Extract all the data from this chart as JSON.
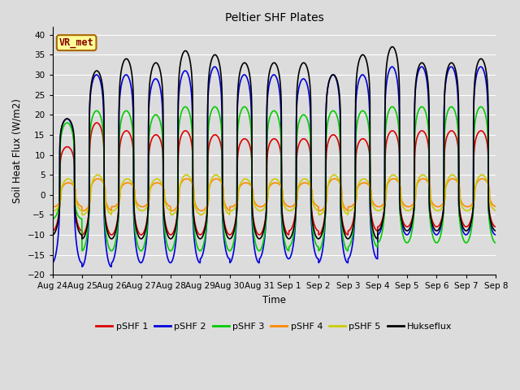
{
  "title": "Peltier SHF Plates",
  "xlabel": "Time",
  "ylabel": "Soil Heat Flux (W/m2)",
  "ylim": [
    -20,
    42
  ],
  "yticks": [
    -20,
    -15,
    -10,
    -5,
    0,
    5,
    10,
    15,
    20,
    25,
    30,
    35,
    40
  ],
  "bg_color": "#dcdcdc",
  "grid_color": "#ffffff",
  "annotation_text": "VR_met",
  "annotation_bg": "#ffff99",
  "annotation_border": "#aa6600",
  "annotation_text_color": "#880000",
  "legend_entries": [
    "pSHF 1",
    "pSHF 2",
    "pSHF 3",
    "pSHF 4",
    "pSHF 5",
    "Hukseflux"
  ],
  "line_colors": [
    "#dd0000",
    "#0000dd",
    "#00cc00",
    "#ff8800",
    "#cccc00",
    "#000000"
  ],
  "line_width": 1.2,
  "n_days": 15,
  "xtick_labels": [
    "Aug 24",
    "Aug 25",
    "Aug 26",
    "Aug 27",
    "Aug 28",
    "Aug 29",
    "Aug 30",
    "Aug 31",
    "Sep 1",
    "Sep 2",
    "Sep 3",
    "Sep 4",
    "Sep 5",
    "Sep 6",
    "Sep 7",
    "Sep 8"
  ],
  "xtick_positions": [
    0,
    1,
    2,
    3,
    4,
    5,
    6,
    7,
    8,
    9,
    10,
    11,
    12,
    13,
    14,
    15
  ],
  "series_params": [
    {
      "day_amp": [
        12,
        18,
        16,
        15,
        16,
        15,
        14,
        14,
        14,
        15,
        14,
        16,
        16,
        16,
        16
      ],
      "night_amp": [
        -9,
        -10,
        -10,
        -10,
        -10,
        -10,
        -10,
        -10,
        -9,
        -10,
        -9,
        -8,
        -8,
        -8,
        -8
      ],
      "sharpness": 6,
      "phase": 0.0
    },
    {
      "day_amp": [
        19,
        30,
        30,
        29,
        31,
        32,
        30,
        30,
        29,
        30,
        30,
        32,
        32,
        32,
        32
      ],
      "night_amp": [
        -17,
        -18,
        -17,
        -17,
        -17,
        -16,
        -17,
        -16,
        -16,
        -17,
        -16,
        -10,
        -10,
        -10,
        -10
      ],
      "sharpness": 7,
      "phase": 0.01
    },
    {
      "day_amp": [
        18,
        21,
        21,
        20,
        22,
        22,
        22,
        21,
        20,
        21,
        21,
        22,
        22,
        22,
        22
      ],
      "night_amp": [
        -6,
        -14,
        -14,
        -14,
        -14,
        -14,
        -14,
        -14,
        -13,
        -14,
        -13,
        -12,
        -12,
        -12,
        -12
      ],
      "sharpness": 6,
      "phase": 0.005
    },
    {
      "day_amp": [
        3,
        4,
        3,
        3,
        4,
        4,
        3,
        3,
        3,
        4,
        3,
        4,
        4,
        4,
        4
      ],
      "night_amp": [
        -3,
        -4,
        -3,
        -3,
        -4,
        -4,
        -3,
        -3,
        -3,
        -4,
        -3,
        -3,
        -3,
        -3,
        -3
      ],
      "sharpness": 3,
      "phase": -0.04
    },
    {
      "day_amp": [
        4,
        5,
        4,
        4,
        5,
        5,
        4,
        4,
        4,
        5,
        4,
        5,
        5,
        5,
        5
      ],
      "night_amp": [
        -4,
        -5,
        -4,
        -4,
        -5,
        -5,
        -4,
        -4,
        -4,
        -5,
        -4,
        -4,
        -4,
        -4,
        -4
      ],
      "sharpness": 2,
      "phase": -0.03
    },
    {
      "day_amp": [
        19,
        31,
        34,
        33,
        36,
        35,
        33,
        33,
        33,
        30,
        35,
        37,
        33,
        33,
        34
      ],
      "night_amp": [
        -10,
        -11,
        -11,
        -11,
        -11,
        -11,
        -11,
        -11,
        -11,
        -11,
        -11,
        -9,
        -9,
        -9,
        -9
      ],
      "sharpness": 8,
      "phase": 0.002
    }
  ]
}
